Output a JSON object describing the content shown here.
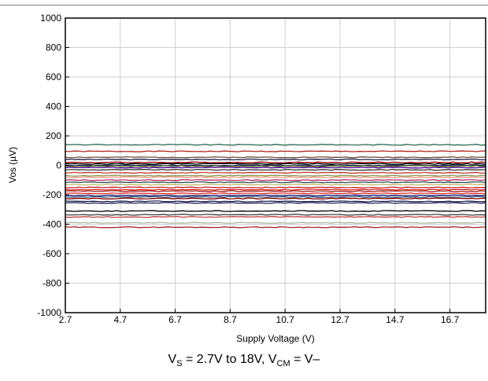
{
  "chart_data": {
    "type": "line",
    "xlabel": "Supply Voltage (V)",
    "ylabel": "Vos (µV)",
    "xlim": [
      2.7,
      18
    ],
    "ylim": [
      -1000,
      1000
    ],
    "x_ticks": [
      "2.7",
      "4.7",
      "6.7",
      "8.7",
      "10.7",
      "12.7",
      "14.7",
      "16.7"
    ],
    "y_ticks": [
      "1000",
      "800",
      "600",
      "400",
      "200",
      "0",
      "-200",
      "-400",
      "-600",
      "-800",
      "-1000"
    ],
    "x": [
      2.7,
      18
    ],
    "grid": true,
    "legend": "none",
    "series": [
      {
        "color": "#2e6b4f",
        "values": [
          140,
          140
        ]
      },
      {
        "color": "#b22222",
        "values": [
          95,
          95
        ]
      },
      {
        "color": "#6b4e3d",
        "values": [
          55,
          55
        ]
      },
      {
        "color": "#1a1a40",
        "values": [
          40,
          40
        ]
      },
      {
        "color": "#8b0000",
        "values": [
          20,
          20
        ]
      },
      {
        "color": "#000000",
        "values": [
          10,
          10
        ]
      },
      {
        "color": "#1b2a5a",
        "values": [
          0,
          0
        ]
      },
      {
        "color": "#556b2f",
        "values": [
          -5,
          -5
        ]
      },
      {
        "color": "#4b0082",
        "values": [
          -15,
          -15
        ]
      },
      {
        "color": "#333333",
        "values": [
          -30,
          -30
        ]
      },
      {
        "color": "#c0392b",
        "values": [
          -50,
          -50
        ]
      },
      {
        "color": "#8a9a5b",
        "values": [
          -70,
          -70
        ]
      },
      {
        "color": "#e9967a",
        "values": [
          -80,
          -80
        ]
      },
      {
        "color": "#b03060",
        "values": [
          -100,
          -100
        ]
      },
      {
        "color": "#2f4f4f",
        "values": [
          -115,
          -115
        ]
      },
      {
        "color": "#bdb76b",
        "values": [
          -130,
          -130
        ]
      },
      {
        "color": "#cd2626",
        "values": [
          -150,
          -150
        ]
      },
      {
        "color": "#d62728",
        "values": [
          -165,
          -165
        ]
      },
      {
        "color": "#a52a2a",
        "values": [
          -175,
          -175
        ]
      },
      {
        "color": "#e03030",
        "values": [
          -190,
          -190
        ]
      },
      {
        "color": "#191970",
        "values": [
          -205,
          -205
        ]
      },
      {
        "color": "#4a6a8a",
        "values": [
          -215,
          -215
        ]
      },
      {
        "color": "#800000",
        "values": [
          -225,
          -225
        ]
      },
      {
        "color": "#1e2050",
        "values": [
          -245,
          -245
        ]
      },
      {
        "color": "#2a2a5a",
        "values": [
          -255,
          -255
        ]
      },
      {
        "color": "#000000",
        "values": [
          -310,
          -310
        ]
      },
      {
        "color": "#3c3c3c",
        "values": [
          -335,
          -335
        ]
      },
      {
        "color": "#c04040",
        "values": [
          -350,
          -350
        ]
      },
      {
        "color": "#a9ba9d",
        "values": [
          -390,
          -390
        ]
      },
      {
        "color": "#a52a2a",
        "values": [
          -420,
          -420
        ]
      }
    ]
  },
  "caption": {
    "v": "V",
    "s_sub": "S",
    "range": " = 2.7V to 18V, V",
    "cm_sub": "CM",
    "tail": " = V–"
  }
}
